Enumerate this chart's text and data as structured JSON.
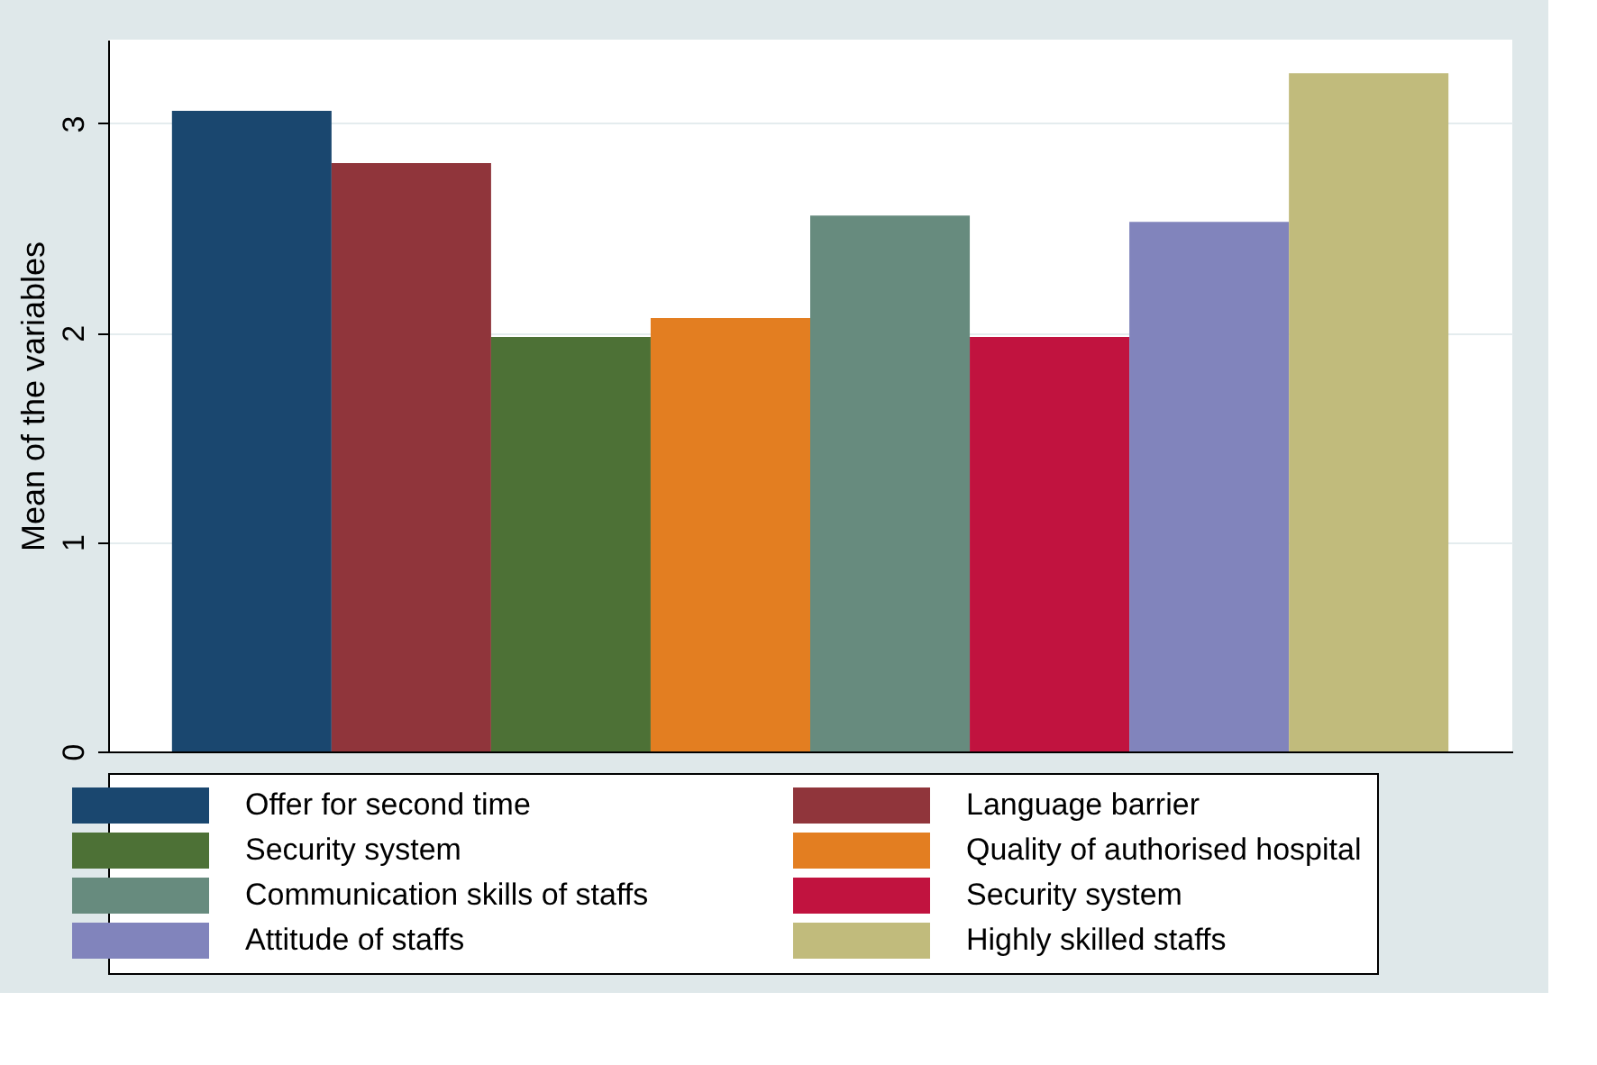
{
  "chart_data": {
    "type": "bar",
    "ylabel": "Mean of the variables",
    "categories": [
      null
    ],
    "series": [
      {
        "name": "Offer for second time",
        "color": "#1a476f",
        "values": [
          3.06
        ]
      },
      {
        "name": "Language barrier",
        "color": "#90353b",
        "values": [
          2.81
        ]
      },
      {
        "name": "Security system",
        "color": "#4d7136",
        "values": [
          1.98
        ]
      },
      {
        "name": "Quality of authorised hospital",
        "color": "#e37e21",
        "values": [
          2.07
        ]
      },
      {
        "name": "Communication skills of staffs",
        "color": "#678b7e",
        "values": [
          2.56
        ]
      },
      {
        "name": "Security system",
        "color": "#c1133f",
        "values": [
          1.98
        ]
      },
      {
        "name": "Attitude of staffs",
        "color": "#8184bc",
        "values": [
          2.53
        ]
      },
      {
        "name": "Highly skilled staffs",
        "color": "#c1bb7c",
        "values": [
          3.24
        ]
      }
    ],
    "ylim": [
      0,
      3.4
    ],
    "yticks": [
      0,
      1,
      2,
      3
    ],
    "grid": "y",
    "legend": "bottom",
    "tick_labels": "y"
  }
}
